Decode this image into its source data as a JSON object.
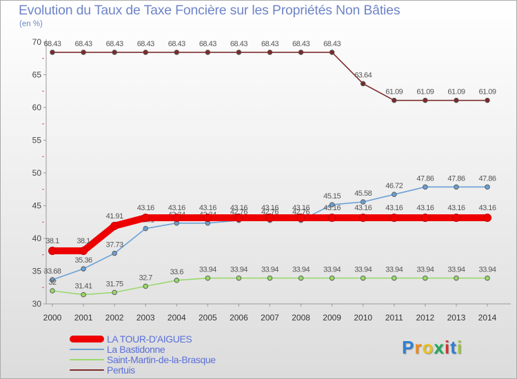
{
  "chart_data": {
    "type": "line",
    "title": "Evolution du Taux de Taxe Foncière sur les Propriétés Non Bâties",
    "subtitle": "(en %)",
    "xlabel": "",
    "ylabel": "(en %)",
    "categories": [
      "2000",
      "2001",
      "2002",
      "2003",
      "2004",
      "2005",
      "2006",
      "2007",
      "2008",
      "2009",
      "2010",
      "2011",
      "2012",
      "2013",
      "2014"
    ],
    "ylim": [
      30,
      70
    ],
    "yticks": [
      30,
      35,
      40,
      45,
      50,
      55,
      60,
      65,
      70
    ],
    "grid": false,
    "legend_position": "bottom-left",
    "series": [
      {
        "name": "Pertuis",
        "color": "#7b2a2a",
        "values": [
          68.43,
          68.43,
          68.43,
          68.43,
          68.43,
          68.43,
          68.43,
          68.43,
          68.43,
          68.43,
          63.64,
          61.09,
          61.09,
          61.09,
          61.09
        ],
        "labels": [
          "68.43",
          "68.43",
          "68.43",
          "68.43",
          "68.43",
          "68.43",
          "68.43",
          "68.43",
          "68.43",
          "68.43",
          "63.64",
          "61.09",
          "61.09",
          "61.09",
          "61.09"
        ]
      },
      {
        "name": "La Bastidonne",
        "color": "#6aa0d4",
        "values": [
          33.68,
          35.36,
          37.73,
          41.51,
          42.34,
          42.34,
          42.76,
          42.76,
          42.76,
          45.15,
          45.58,
          46.72,
          47.86,
          47.86,
          47.86
        ],
        "labels": [
          "33.68",
          "35.36",
          "37.73",
          "41.51",
          "42.34",
          "42.34",
          "42.76",
          "42.76",
          "42.76",
          "45.15",
          "45.58",
          "46.72",
          "47.86",
          "47.86",
          "47.86"
        ]
      },
      {
        "name": "Saint-Martin-de-la-Brasque",
        "color": "#99d86a",
        "values": [
          32,
          31.41,
          31.75,
          32.7,
          33.6,
          33.94,
          33.94,
          33.94,
          33.94,
          33.94,
          33.94,
          33.94,
          33.94,
          33.94,
          33.94
        ],
        "labels": [
          "32",
          "31.41",
          "31.75",
          "32.7",
          "33.6",
          "33.94",
          "33.94",
          "33.94",
          "33.94",
          "33.94",
          "33.94",
          "33.94",
          "33.94",
          "33.94",
          "33.94"
        ]
      },
      {
        "name": "LA TOUR-D'AIGUES",
        "color": "#ee0000",
        "values": [
          38.1,
          38.1,
          41.91,
          43.16,
          43.16,
          43.16,
          43.16,
          43.16,
          43.16,
          43.16,
          43.16,
          43.16,
          43.16,
          43.16,
          43.16
        ],
        "labels": [
          "38.1",
          "38.1",
          "41.91",
          "43.16",
          "43.16",
          "43.16",
          "43.16",
          "43.16",
          "43.16",
          "43.16",
          "43.16",
          "43.16",
          "43.16",
          "43.16",
          "43.16"
        ]
      }
    ],
    "legend_order": [
      "LA TOUR-D'AIGUES",
      "La Bastidonne",
      "Saint-Martin-de-la-Brasque",
      "Pertuis"
    ]
  },
  "brand": {
    "letters": [
      "P",
      "r",
      "o",
      "x",
      "i",
      "t",
      "i"
    ],
    "colors": [
      "#2f7fd0",
      "#f08a1c",
      "#e8c21f",
      "#1fa85a",
      "#d0342c",
      "#2f7fd0",
      "#9ac43a"
    ]
  }
}
